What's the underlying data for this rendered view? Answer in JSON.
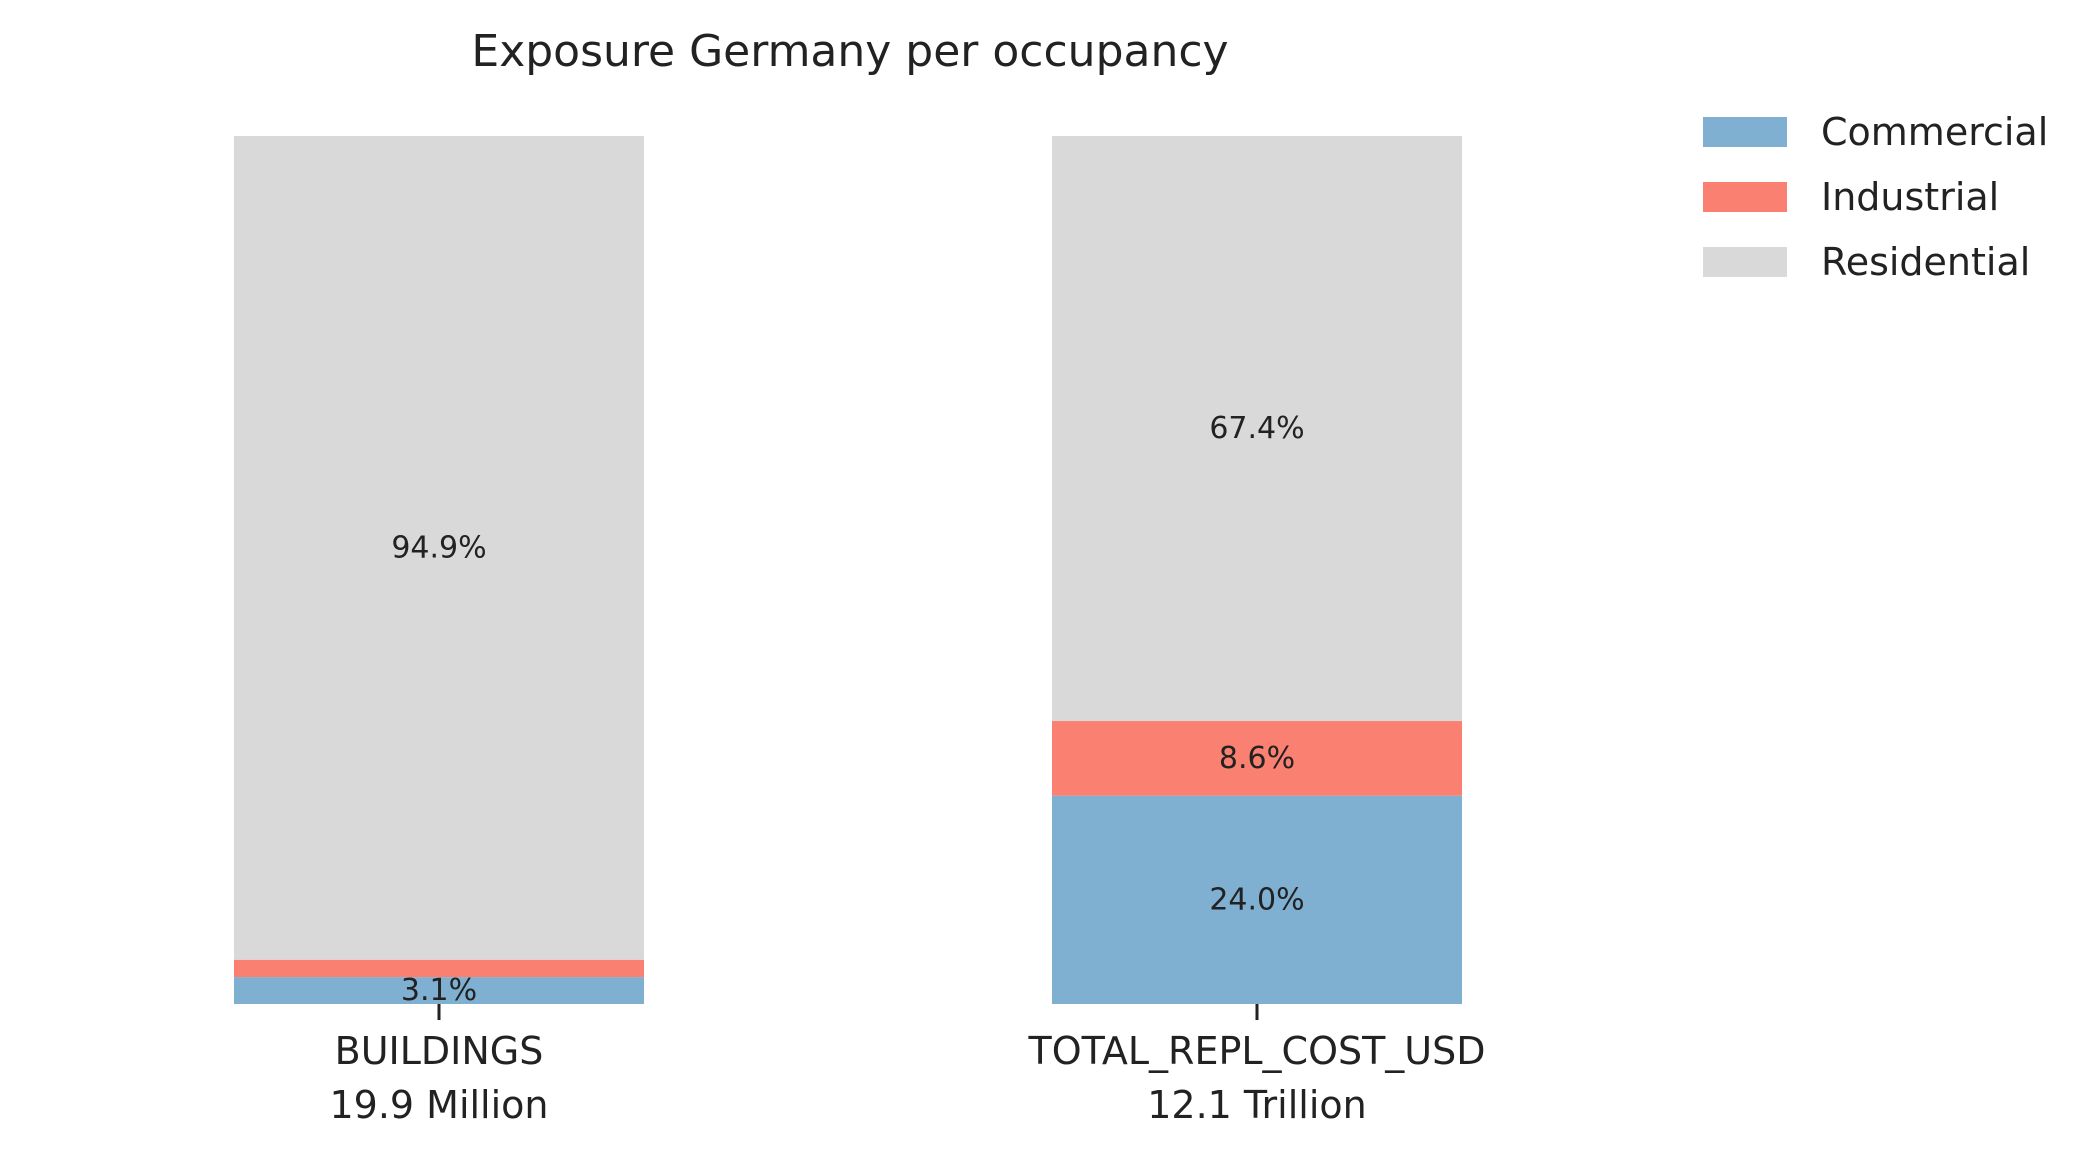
{
  "chart_data": {
    "type": "bar",
    "stacked": true,
    "normalized_percent": true,
    "title": "Exposure Germany per occupancy",
    "categories": [
      "BUILDINGS",
      "TOTAL_REPL_COST_USD"
    ],
    "category_totals": [
      "19.9 Million",
      "12.1 Trillion"
    ],
    "series": [
      {
        "name": "Commercial",
        "color": "#7fb0d2",
        "values": [
          3.1,
          24.0
        ],
        "labels": [
          "3.1%",
          "24.0%"
        ]
      },
      {
        "name": "Industrial",
        "color": "#fa8072",
        "values": [
          2.0,
          8.6
        ],
        "labels": [
          "",
          "8.6%"
        ]
      },
      {
        "name": "Residential",
        "color": "#d9d9d9",
        "values": [
          94.9,
          67.4
        ],
        "labels": [
          "94.9%",
          "67.4%"
        ]
      }
    ],
    "ylim": [
      0,
      100
    ],
    "xlabel": "",
    "ylabel": "",
    "grid": false,
    "legend": {
      "position": "top-right"
    }
  }
}
